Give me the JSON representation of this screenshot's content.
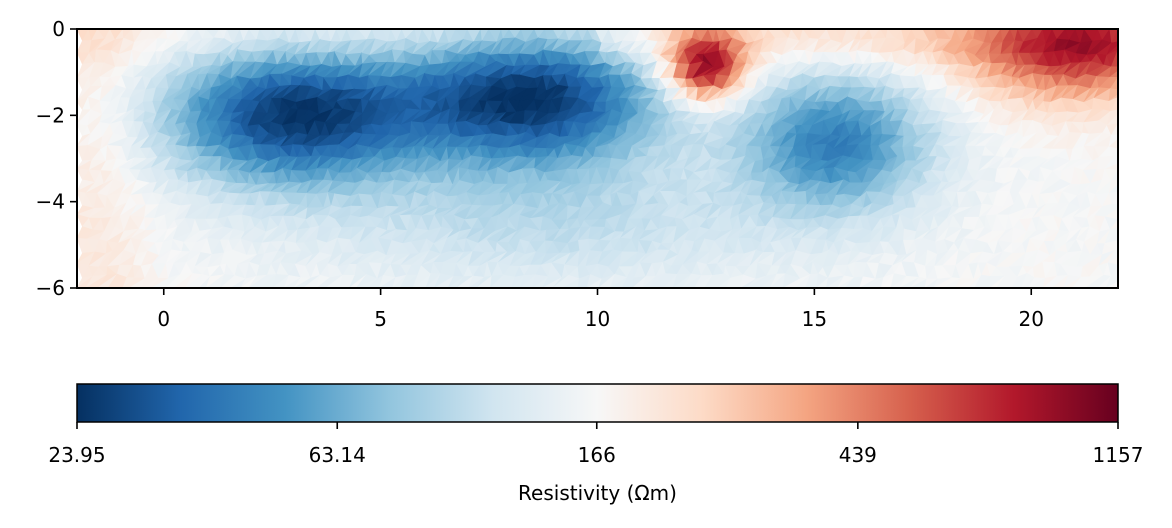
{
  "chart_data": {
    "type": "heatmap",
    "title": "",
    "xlabel": "",
    "ylabel": "",
    "xlim": [
      -2,
      22
    ],
    "ylim": [
      -6,
      0
    ],
    "x_ticks": [
      0,
      5,
      10,
      15,
      20
    ],
    "y_ticks": [
      0,
      -2,
      -4,
      -6
    ],
    "x_tick_labels": [
      "0",
      "5",
      "10",
      "15",
      "20"
    ],
    "y_tick_labels": [
      "0",
      "−2",
      "−4",
      "−6"
    ],
    "colormap": "RdBu_r",
    "color_scale": "log",
    "anomalies": [
      {
        "kind": "conductive",
        "x_center": 3,
        "y_center": -2.0,
        "resistivity": 26
      },
      {
        "kind": "conductive",
        "x_center": 8.5,
        "y_center": -1.6,
        "resistivity": 25
      },
      {
        "kind": "conductive",
        "x_center": 15.5,
        "y_center": -2.6,
        "resistivity": 45
      },
      {
        "kind": "resistive",
        "x_center": 12.5,
        "y_center": -0.9,
        "resistivity": 1100
      },
      {
        "kind": "resistive",
        "x_center": 21,
        "y_center": -0.5,
        "resistivity": 650
      }
    ],
    "colorbar": {
      "label": "Resistivity (Ωm)",
      "min": 23.95,
      "max": 1157,
      "tick_values": [
        23.95,
        63.14,
        166,
        439,
        1157
      ],
      "tick_labels": [
        "23.95",
        "63.14",
        "166",
        "439",
        "1157"
      ]
    }
  }
}
